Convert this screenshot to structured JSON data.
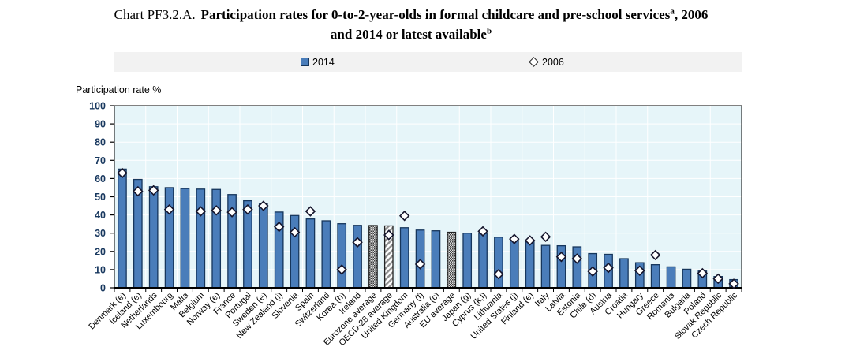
{
  "title": {
    "prefix": "Chart PF3.2.A.",
    "main": "Participation rates for 0-to-2-year-olds in formal childcare and pre-school services",
    "note_a": "a",
    "suffix": ", 2006",
    "line2": "and 2014 or latest available",
    "note_b": "b"
  },
  "legend": {
    "item_2014": "2014",
    "item_2006": "2006"
  },
  "colors": {
    "bar_fill": "#4a7dba",
    "bar_border": "#16365c",
    "plot_bg": "#e6f5f9",
    "gridline": "#ffffff",
    "legend_bg": "#f2f2f2",
    "tick_label": "#17375e",
    "diamond_fill": "#ffffff",
    "diamond_border": "#14142b",
    "axis": "#000000"
  },
  "chart_data": {
    "type": "bar",
    "title": "Chart PF3.2.A. Participation rates for 0-to-2-year-olds in formal childcare and pre-school services, 2006 and 2014 or latest available",
    "xlabel": "",
    "ylabel": "Participation rate %",
    "ylim": [
      0,
      100
    ],
    "y_ticks": [
      0,
      10,
      20,
      30,
      40,
      50,
      60,
      70,
      80,
      90,
      100
    ],
    "grid": true,
    "legend_position": "top",
    "x_label_rotation": 45,
    "categories": [
      "Denmark (e)",
      "Iceland (e)",
      "Netherlands",
      "Luxembourg",
      "Malta",
      "Belgium",
      "Norway (e)",
      "France",
      "Portugal",
      "Sweden (e)",
      "New Zealand (i)",
      "Slovenia",
      "Spain",
      "Switzerland",
      "Korea (h)",
      "Ireland",
      "Eurozone average",
      "OECD-28 average",
      "United Kingdom",
      "Germany (f)",
      "Australia (c)",
      "EU average",
      "Japan (g)",
      "Cyprus (k,l)",
      "Lithuania",
      "United States (j)",
      "Finland (e)",
      "Italy",
      "Latvia",
      "Estonia",
      "Chile (d)",
      "Austria",
      "Croatia",
      "Hungary",
      "Greece",
      "Romania",
      "Bulgaria",
      "Poland",
      "Slovak Republic",
      "Czech Republic"
    ],
    "series": [
      {
        "name": "2014",
        "values": [
          65.2,
          59.5,
          55.5,
          55.0,
          54.5,
          54.2,
          54.0,
          51.2,
          47.8,
          46.0,
          41.6,
          39.7,
          37.8,
          36.8,
          35.2,
          34.3,
          34.2,
          34.0,
          33.0,
          31.7,
          31.3,
          30.5,
          30.0,
          29.8,
          27.8,
          27.0,
          25.5,
          23.3,
          23.1,
          22.5,
          18.8,
          18.4,
          16.0,
          13.8,
          12.7,
          11.5,
          10.2,
          9.2,
          6.2,
          4.5
        ]
      },
      {
        "name": "2006",
        "values": [
          63,
          53,
          53.5,
          43,
          null,
          42,
          42.5,
          41.5,
          43,
          45,
          33.5,
          30.5,
          42,
          null,
          10,
          25,
          null,
          29,
          39.5,
          13,
          null,
          null,
          null,
          31,
          7.5,
          26.8,
          26,
          28,
          17,
          16,
          9,
          11,
          null,
          9.4,
          18,
          null,
          null,
          8,
          5,
          2.2
        ]
      }
    ],
    "styles": {
      "16": "crosshatch",
      "17": "diagonal",
      "21": "crosshatch"
    }
  }
}
